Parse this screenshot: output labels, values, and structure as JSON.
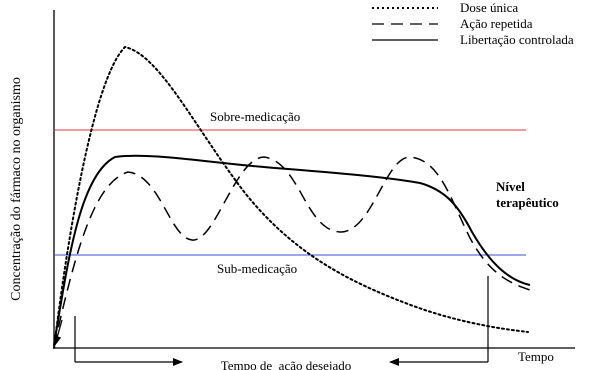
{
  "chart_data": {
    "type": "line",
    "title": "",
    "xlabel": "Tempo",
    "ylabel": "Concentração do fármaco no organismo",
    "legend_position": "top-right",
    "grid": false,
    "axis_ticks": false,
    "series": [
      {
        "name": "Dose única",
        "style": "dotted"
      },
      {
        "name": "Ação repetida",
        "style": "dashed"
      },
      {
        "name": "Libertação controlada",
        "style": "solid"
      }
    ],
    "reference_lines": [
      {
        "label": "Sobre-medicação",
        "color": "#e0393e"
      },
      {
        "label": "Sub-medicação",
        "color": "#3b4fd8"
      }
    ],
    "annotations": {
      "therapeutic_label": [
        "Nível",
        "terapêutico"
      ],
      "action_span_label": "Tempo de  ação desejado"
    },
    "colors": {
      "curves": "#000000",
      "over": "#e0393e",
      "under": "#3b4fd8"
    }
  }
}
